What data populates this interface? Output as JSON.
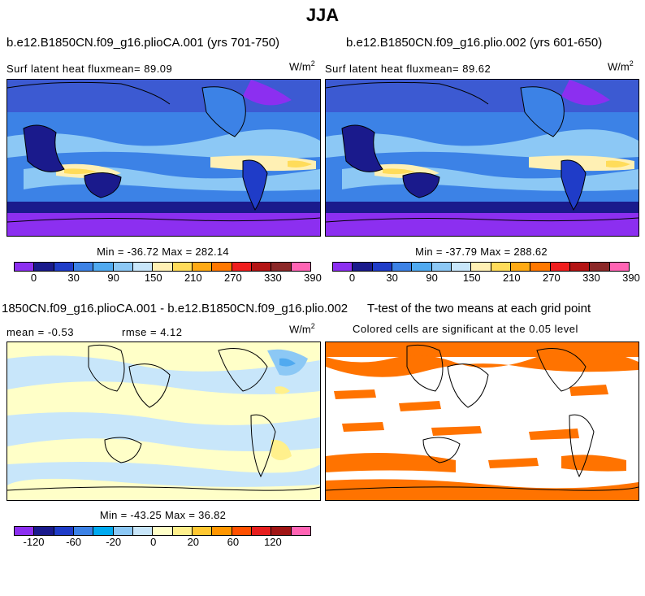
{
  "title": "JJA",
  "chart_data": [
    {
      "type": "heatmap",
      "title": "b.e12.B1850CN.f09_g16.plioCA.001 (yrs 701-750)",
      "subtitle": "Surf latent heat fluxmean=  89.09",
      "units_base": "W/m",
      "units_exp": "2",
      "min_max": "Min = -36.72 Max = 282.14",
      "colorbar": {
        "colors": [
          "#8c2ff0",
          "#1a1a8c",
          "#1f3cc8",
          "#3c82e6",
          "#50aaf0",
          "#8cc8f5",
          "#c8e6fa",
          "#fff0b4",
          "#ffdc5a",
          "#ffaa14",
          "#ff7800",
          "#f01e1e",
          "#b41414",
          "#8c2828",
          "#ff64b4"
        ],
        "tick_labels": [
          "0",
          "30",
          "90",
          "150",
          "210",
          "270",
          "330",
          "390"
        ]
      }
    },
    {
      "type": "heatmap",
      "title": "b.e12.B1850CN.f09_g16.plio.002 (yrs 601-650)",
      "subtitle": "Surf latent heat fluxmean=  89.62",
      "units_base": "W/m",
      "units_exp": "2",
      "min_max": "Min = -37.79 Max = 288.62",
      "colorbar": {
        "colors": [
          "#8c2ff0",
          "#1a1a8c",
          "#1f3cc8",
          "#3c82e6",
          "#50aaf0",
          "#8cc8f5",
          "#c8e6fa",
          "#fff0b4",
          "#ffdc5a",
          "#ffaa14",
          "#ff7800",
          "#f01e1e",
          "#b41414",
          "#8c2828",
          "#ff64b4"
        ],
        "tick_labels": [
          "0",
          "30",
          "90",
          "150",
          "210",
          "270",
          "330",
          "390"
        ]
      }
    },
    {
      "type": "heatmap",
      "title": "1850CN.f09_g16.plioCA.001 - b.e12.B1850CN.f09_g16.plio.002",
      "subtitle_mean": "mean =   -0.53",
      "subtitle_rmse": "rmse =    4.12",
      "units_base": "W/m",
      "units_exp": "2",
      "min_max": "Min = -43.25 Max = 36.82",
      "colorbar": {
        "colors": [
          "#8c2ff0",
          "#1a1a8c",
          "#1f3cc8",
          "#3c82e6",
          "#00aaf0",
          "#8cc8f5",
          "#c8e6fa",
          "#ffffc8",
          "#fff08c",
          "#ffc832",
          "#ff9600",
          "#ff5000",
          "#e61e1e",
          "#a01414",
          "#ff64b4"
        ],
        "tick_labels": [
          "-120",
          "-60",
          "-20",
          "0",
          "20",
          "60",
          "120"
        ]
      }
    },
    {
      "type": "heatmap",
      "title": "T-test of the two means at each grid point",
      "subtitle": "Colored cells are significant at the 0.05 level",
      "significant_color": "#ff7300"
    }
  ]
}
